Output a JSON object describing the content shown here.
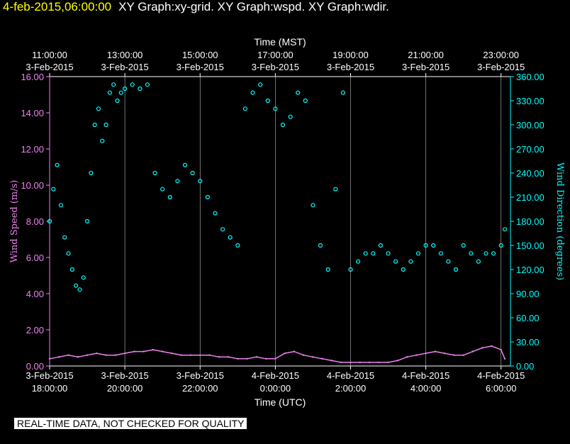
{
  "header": {
    "datetime": "4-feb-2015,06:00:00",
    "titles": "XY Graph:xy-grid.  XY Graph:wspd.  XY Graph:wdir."
  },
  "disclaimer": "REAL-TIME DATA, NOT CHECKED FOR QUALITY",
  "colors": {
    "background": "#000000",
    "frame": "#ffffff",
    "wind_speed": "#ee82ee",
    "wind_direction": "#00ffff",
    "header_date": "#ffff00"
  },
  "chart_data": {
    "type": "scatter",
    "top_axis": {
      "label": "Time (MST)",
      "ticks": [
        {
          "time": "11:00:00",
          "date": "3-Feb-2015",
          "utc_hours": 0
        },
        {
          "time": "13:00:00",
          "date": "3-Feb-2015",
          "utc_hours": 2
        },
        {
          "time": "15:00:00",
          "date": "3-Feb-2015",
          "utc_hours": 4
        },
        {
          "time": "17:00:00",
          "date": "3-Feb-2015",
          "utc_hours": 6
        },
        {
          "time": "19:00:00",
          "date": "3-Feb-2015",
          "utc_hours": 8
        },
        {
          "time": "21:00:00",
          "date": "3-Feb-2015",
          "utc_hours": 10
        },
        {
          "time": "23:00:00",
          "date": "3-Feb-2015",
          "utc_hours": 12
        }
      ]
    },
    "bottom_axis": {
      "label": "Time (UTC)",
      "range_hours": [
        0,
        12.25
      ],
      "ticks": [
        {
          "date": "3-Feb-2015",
          "time": "18:00:00",
          "utc_hours": 0
        },
        {
          "date": "3-Feb-2015",
          "time": "20:00:00",
          "utc_hours": 2
        },
        {
          "date": "3-Feb-2015",
          "time": "22:00:00",
          "utc_hours": 4
        },
        {
          "date": "4-Feb-2015",
          "time": "0:00:00",
          "utc_hours": 6
        },
        {
          "date": "4-Feb-2015",
          "time": "2:00:00",
          "utc_hours": 8
        },
        {
          "date": "4-Feb-2015",
          "time": "4:00:00",
          "utc_hours": 10
        },
        {
          "date": "4-Feb-2015",
          "time": "6:00:00",
          "utc_hours": 12
        }
      ]
    },
    "left_axis": {
      "label": "Wind Speed (m/s)",
      "range": [
        0,
        16
      ],
      "ticks": [
        "0.00",
        "2.00",
        "4.00",
        "6.00",
        "8.00",
        "10.00",
        "12.00",
        "14.00",
        "16.00"
      ]
    },
    "right_axis": {
      "label": "Wind Direction (degrees)",
      "range": [
        0,
        360
      ],
      "ticks": [
        "0.00",
        "30.00",
        "60.00",
        "90.00",
        "120.00",
        "150.00",
        "180.00",
        "210.00",
        "240.00",
        "270.00",
        "300.00",
        "330.00",
        "360.00"
      ]
    },
    "grid": "vertical",
    "series": [
      {
        "axis": "left",
        "style": "line",
        "x": [
          0.0,
          0.25,
          0.5,
          0.75,
          1.0,
          1.25,
          1.5,
          1.75,
          2.0,
          2.25,
          2.5,
          2.75,
          3.0,
          3.25,
          3.5,
          3.75,
          4.0,
          4.25,
          4.5,
          4.75,
          5.0,
          5.25,
          5.5,
          5.75,
          6.0,
          6.25,
          6.5,
          6.75,
          7.0,
          7.25,
          7.5,
          7.75,
          8.0,
          8.25,
          8.5,
          8.75,
          9.0,
          9.25,
          9.5,
          9.75,
          10.0,
          10.25,
          10.5,
          10.75,
          11.0,
          11.25,
          11.5,
          11.75,
          12.0,
          12.1
        ],
        "y": [
          0.4,
          0.5,
          0.6,
          0.5,
          0.6,
          0.7,
          0.6,
          0.6,
          0.7,
          0.8,
          0.8,
          0.9,
          0.8,
          0.7,
          0.6,
          0.6,
          0.6,
          0.6,
          0.5,
          0.5,
          0.4,
          0.4,
          0.5,
          0.4,
          0.4,
          0.7,
          0.8,
          0.6,
          0.5,
          0.4,
          0.3,
          0.2,
          0.2,
          0.2,
          0.2,
          0.2,
          0.2,
          0.3,
          0.5,
          0.6,
          0.7,
          0.8,
          0.7,
          0.6,
          0.6,
          0.8,
          1.0,
          1.1,
          0.9,
          0.4
        ]
      },
      {
        "axis": "right",
        "style": "points",
        "x": [
          0.0,
          0.1,
          0.2,
          0.3,
          0.4,
          0.5,
          0.6,
          0.7,
          0.8,
          0.9,
          1.0,
          1.1,
          1.2,
          1.3,
          1.4,
          1.5,
          1.6,
          1.7,
          1.8,
          1.9,
          2.0,
          2.2,
          2.4,
          2.6,
          2.8,
          3.0,
          3.2,
          3.4,
          3.6,
          3.8,
          4.0,
          4.2,
          4.4,
          4.6,
          4.8,
          5.0,
          5.2,
          5.4,
          5.6,
          5.8,
          6.0,
          6.2,
          6.4,
          6.6,
          6.8,
          7.0,
          7.2,
          7.4,
          7.6,
          7.8,
          8.0,
          8.2,
          8.4,
          8.6,
          8.8,
          9.0,
          9.2,
          9.4,
          9.6,
          9.8,
          10.0,
          10.2,
          10.4,
          10.6,
          10.8,
          11.0,
          11.2,
          11.4,
          11.6,
          11.8,
          12.0,
          12.1
        ],
        "y": [
          180,
          220,
          250,
          200,
          160,
          140,
          120,
          100,
          95,
          110,
          180,
          240,
          300,
          320,
          280,
          300,
          340,
          350,
          330,
          340,
          345,
          350,
          345,
          350,
          240,
          220,
          210,
          230,
          250,
          240,
          230,
          210,
          190,
          170,
          160,
          150,
          320,
          340,
          350,
          330,
          320,
          300,
          310,
          340,
          330,
          200,
          150,
          120,
          220,
          340,
          120,
          130,
          140,
          140,
          150,
          140,
          130,
          120,
          130,
          140,
          150,
          150,
          140,
          130,
          120,
          150,
          140,
          130,
          140,
          140,
          150,
          170
        ]
      }
    ]
  }
}
